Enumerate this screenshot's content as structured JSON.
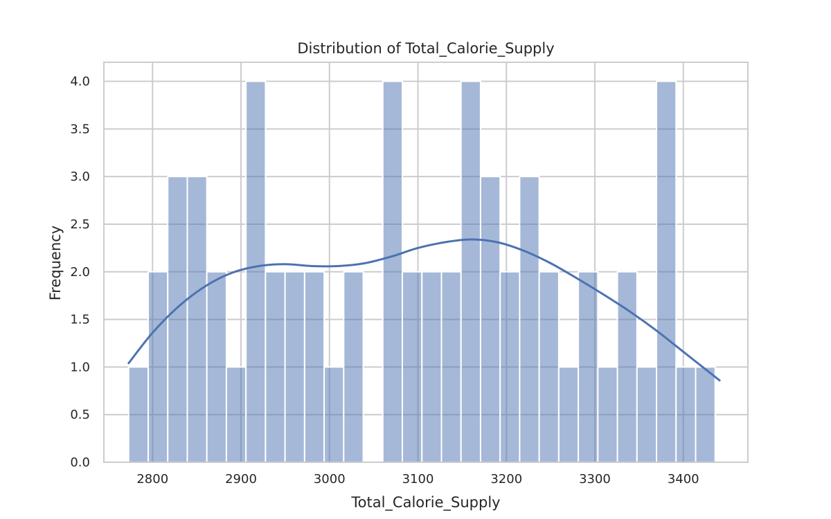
{
  "chart_data": {
    "type": "bar",
    "title": "Distribution of Total_Calorie_Supply",
    "xlabel": "Total_Calorie_Supply",
    "ylabel": "Frequency",
    "xlim": [
      2745,
      3473
    ],
    "ylim": [
      0,
      4.2
    ],
    "grid": true,
    "x_ticks": [
      2800,
      2900,
      3000,
      3100,
      3200,
      3300,
      3400
    ],
    "y_ticks": [
      0.0,
      0.5,
      1.0,
      1.5,
      2.0,
      2.5,
      3.0,
      3.5,
      4.0
    ],
    "y_tick_labels": [
      "0.0",
      "0.5",
      "1.0",
      "1.5",
      "2.0",
      "2.5",
      "3.0",
      "3.5",
      "4.0"
    ],
    "bins": {
      "start": 2773,
      "width": 22.1,
      "counts": [
        1,
        2,
        3,
        3,
        2,
        1,
        4,
        2,
        2,
        2,
        1,
        2,
        0,
        4,
        2,
        2,
        2,
        4,
        3,
        2,
        3,
        2,
        1,
        2,
        1,
        2,
        1,
        4,
        1,
        1
      ]
    },
    "kde": {
      "x": [
        2773,
        2800,
        2830,
        2860,
        2890,
        2920,
        2950,
        2980,
        3010,
        3040,
        3070,
        3100,
        3130,
        3160,
        3190,
        3220,
        3250,
        3280,
        3310,
        3340,
        3370,
        3400,
        3441
      ],
      "y": [
        1.04,
        1.36,
        1.64,
        1.85,
        1.99,
        2.06,
        2.08,
        2.06,
        2.06,
        2.09,
        2.16,
        2.25,
        2.31,
        2.34,
        2.31,
        2.22,
        2.09,
        1.93,
        1.76,
        1.58,
        1.38,
        1.16,
        0.86
      ]
    }
  }
}
